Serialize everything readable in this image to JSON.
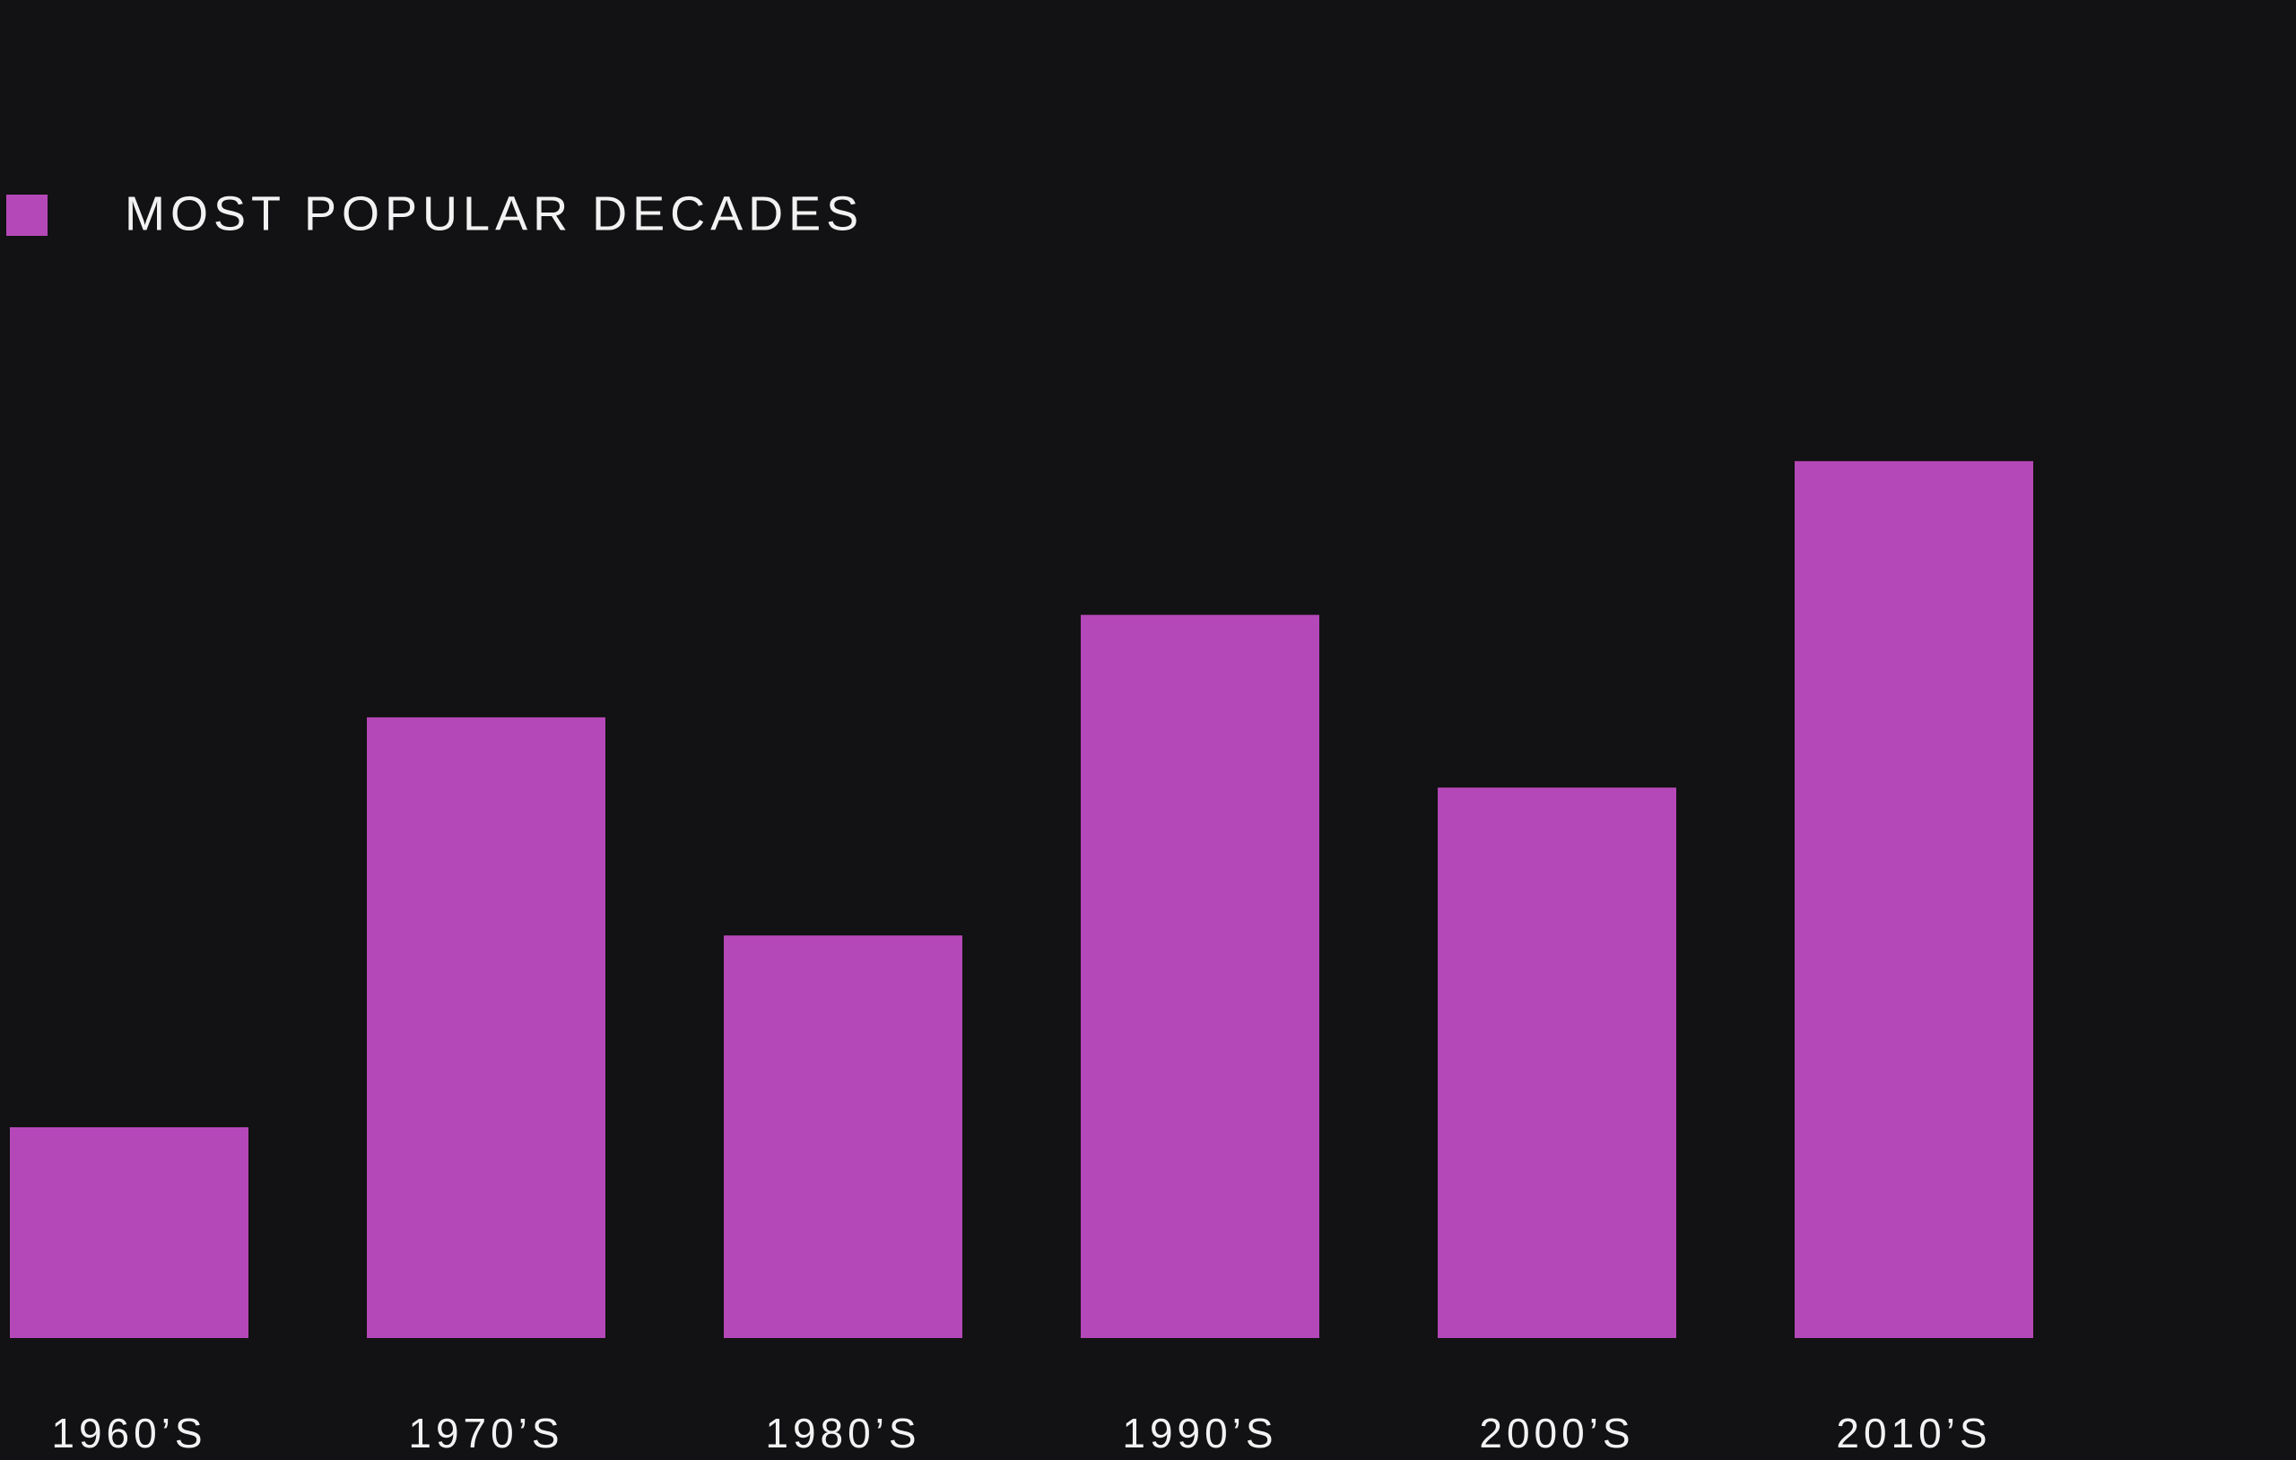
{
  "chart_data": {
    "type": "bar",
    "categories": [
      "1960’S",
      "1970’S",
      "1980’S",
      "1990’S",
      "2000’S",
      "2010’S"
    ],
    "series": [
      {
        "name": "MOST POPULAR DECADES",
        "color": "#b548b8",
        "values": [
          144,
          424,
          275,
          494,
          376,
          599
        ]
      }
    ],
    "ylim": [
      0,
      914
    ],
    "legend": "top-left",
    "grid": false
  }
}
